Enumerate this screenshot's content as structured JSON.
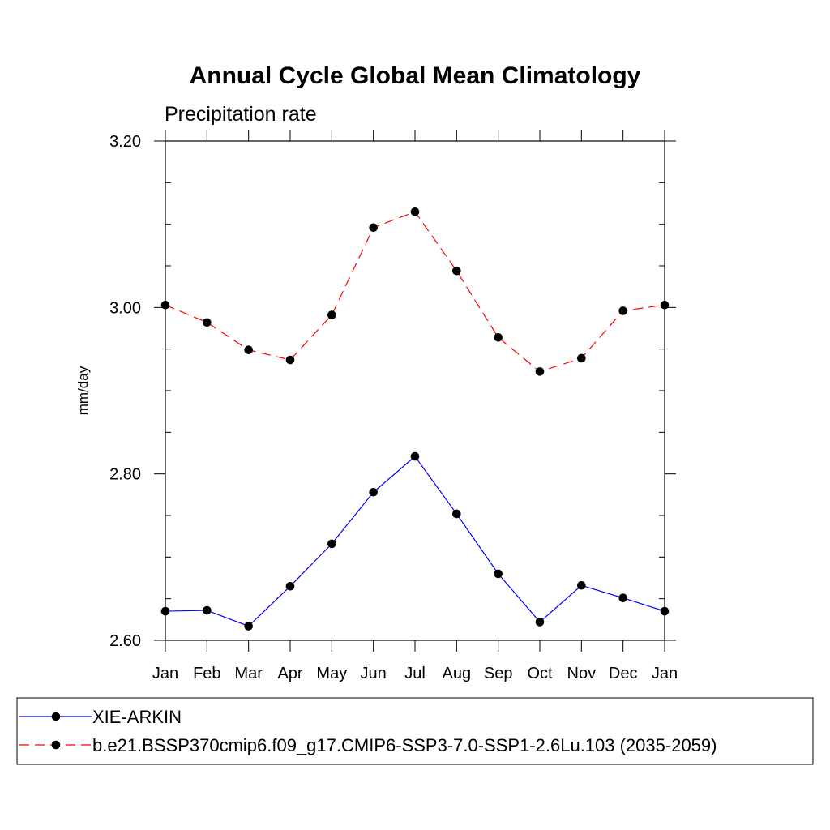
{
  "chart_data": {
    "type": "line",
    "title": "Annual Cycle Global Mean Climatology",
    "subtitle": "Precipitation rate",
    "xlabel": "",
    "ylabel": "mm/day",
    "categories": [
      "Jan",
      "Feb",
      "Mar",
      "Apr",
      "May",
      "Jun",
      "Jul",
      "Aug",
      "Sep",
      "Oct",
      "Nov",
      "Dec",
      "Jan"
    ],
    "ylim": [
      2.6,
      3.2
    ],
    "yticks": [
      2.6,
      2.8,
      3.0,
      3.2
    ],
    "ytick_labels": [
      "2.60",
      "2.80",
      "3.00",
      "3.20"
    ],
    "grid": false,
    "legend_position": "bottom",
    "series": [
      {
        "name": "XIE-ARKIN",
        "color": "#0000ff",
        "line_style": "solid",
        "marker": "filled-circle",
        "values": [
          2.635,
          2.636,
          2.617,
          2.665,
          2.716,
          2.778,
          2.821,
          2.752,
          2.68,
          2.622,
          2.666,
          2.651,
          2.635
        ]
      },
      {
        "name": "b.e21.BSSP370cmip6.f09_g17.CMIP6-SSP3-7.0-SSP1-2.6Lu.103 (2035-2059)",
        "color": "#ff0000",
        "line_style": "dashed",
        "marker": "filled-circle",
        "values": [
          3.003,
          2.982,
          2.949,
          2.937,
          2.991,
          3.096,
          3.115,
          3.044,
          2.964,
          2.923,
          2.939,
          2.996,
          3.003
        ]
      }
    ]
  }
}
